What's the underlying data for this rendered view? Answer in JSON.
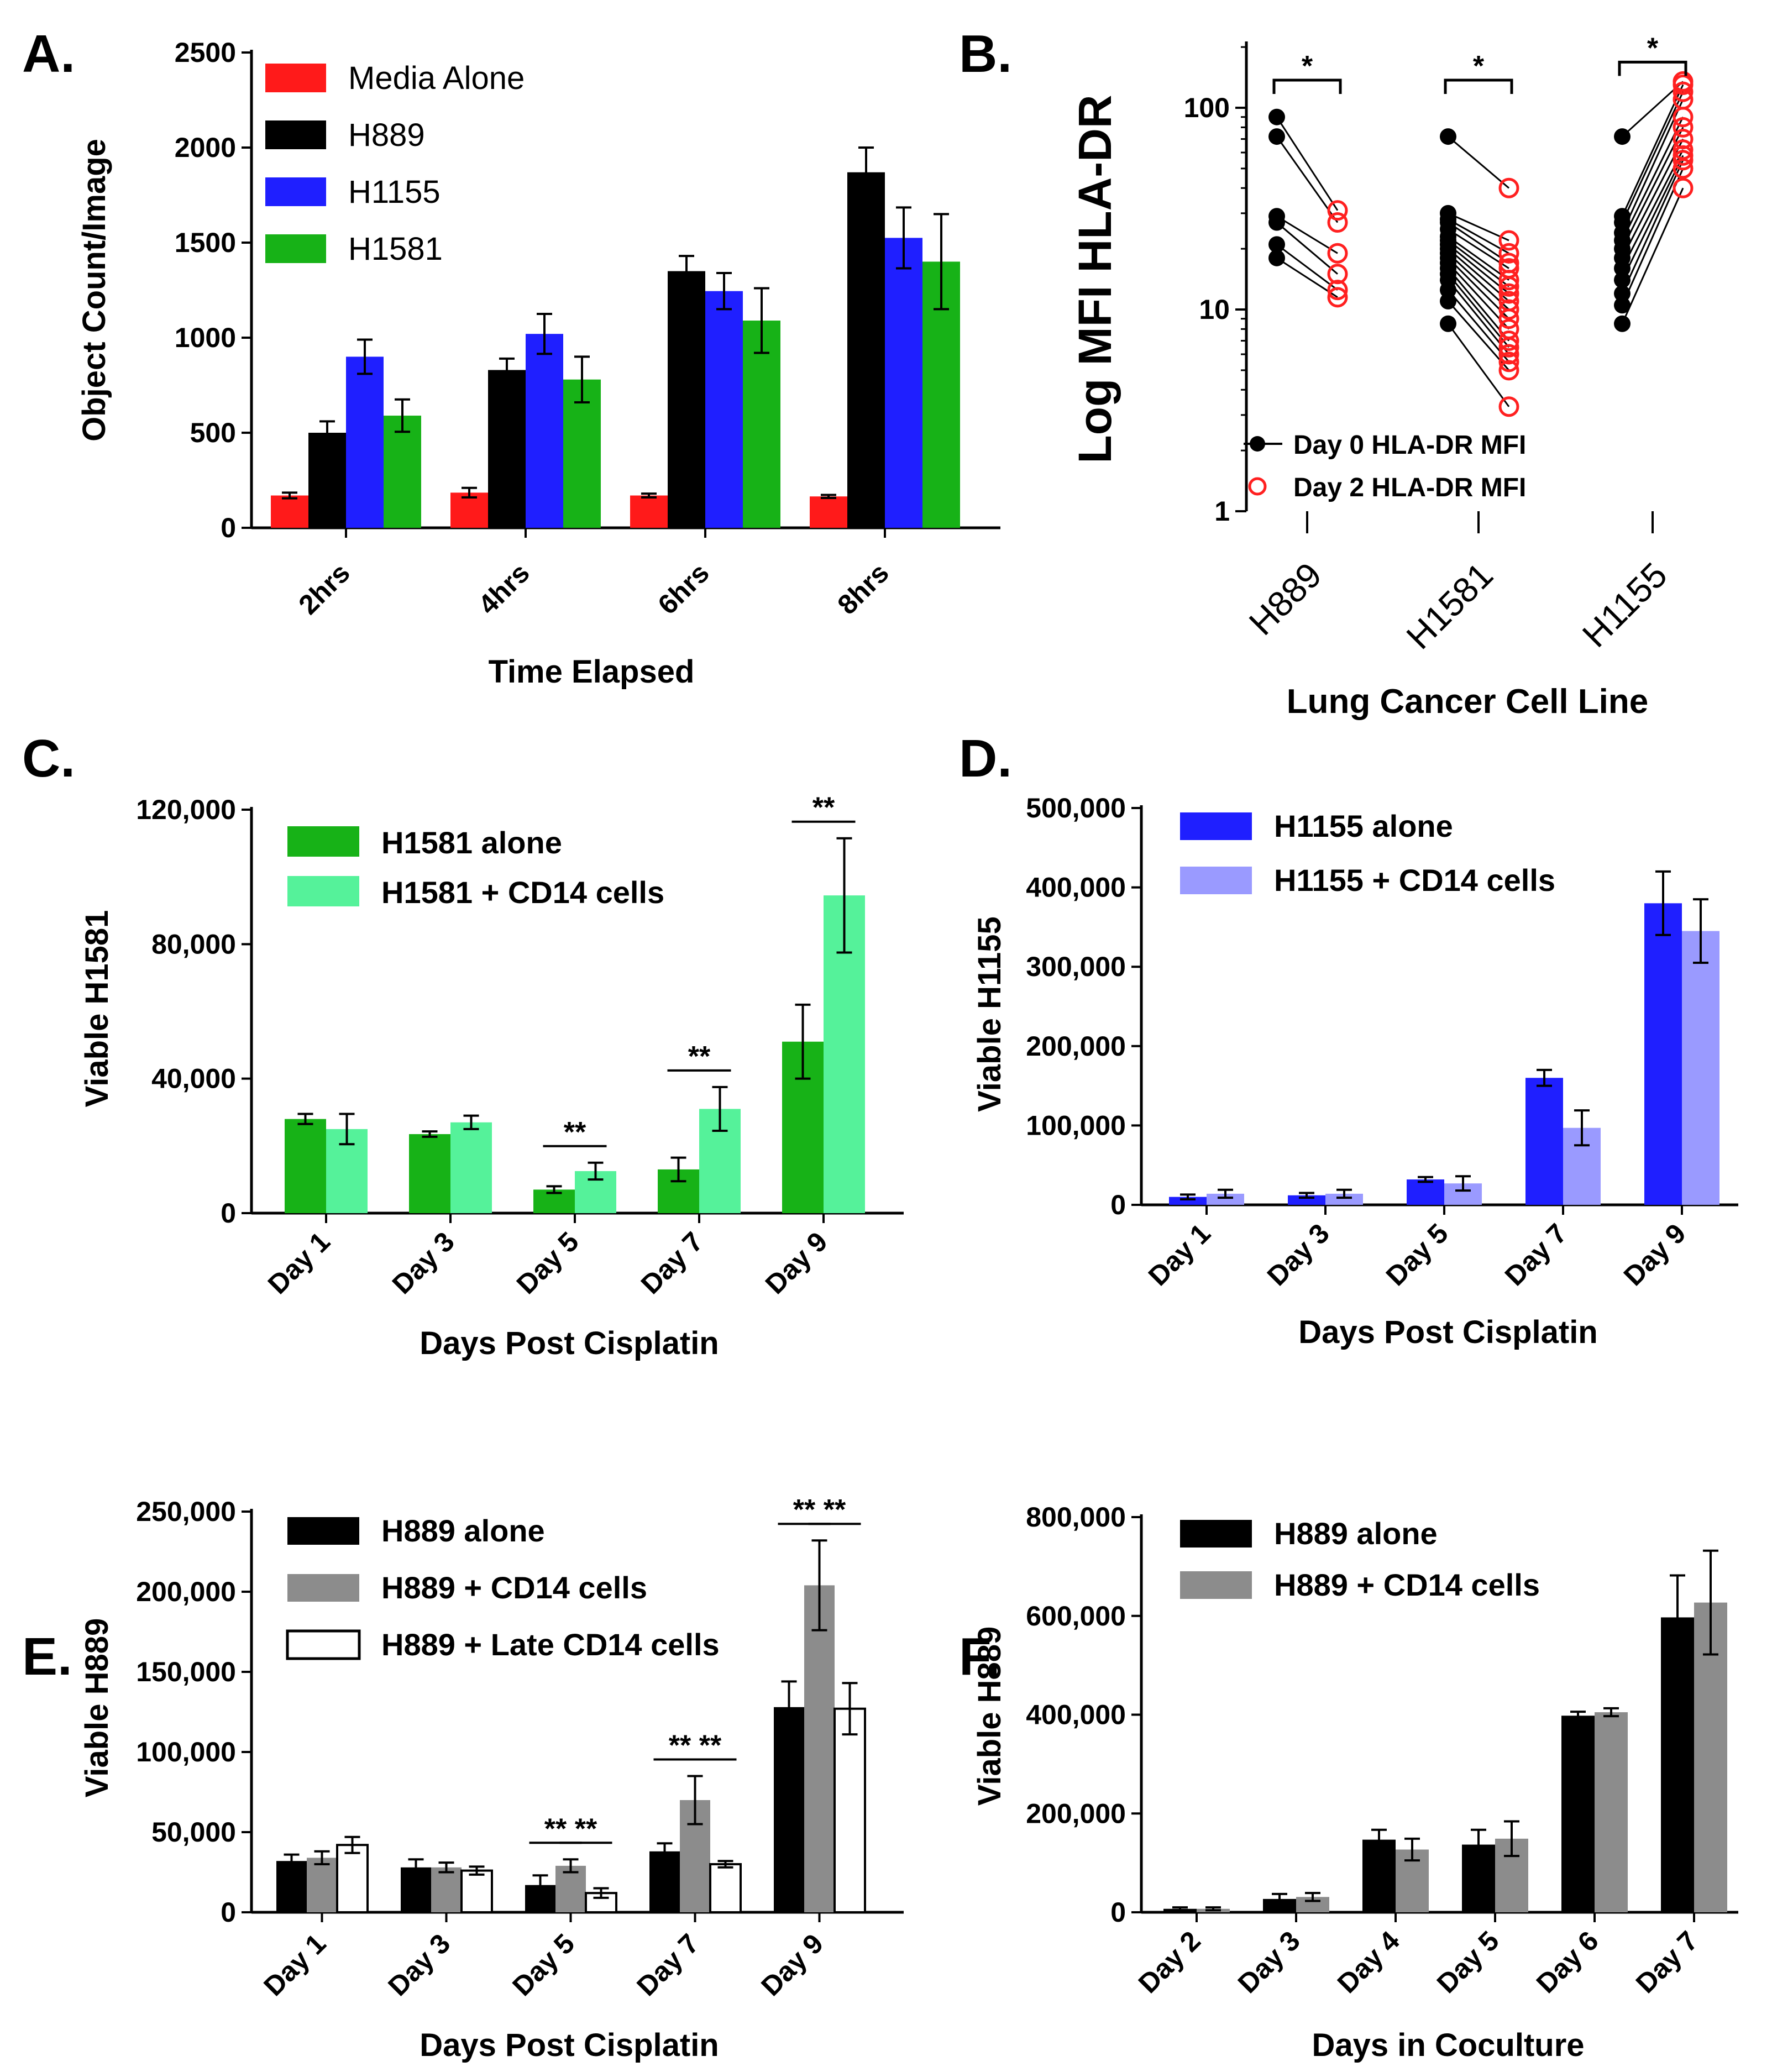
{
  "figure_title": "",
  "chart_data": [
    {
      "panel": "A.",
      "type": "bar",
      "title": "",
      "xlabel": "Time  Elapsed",
      "ylabel": "Object Count/Image",
      "ylim": [
        0,
        2500
      ],
      "yticks": [
        "0",
        "500",
        "1000",
        "1500",
        "2000",
        "2500"
      ],
      "categories": [
        "2hrs",
        "4hrs",
        "6hrs",
        "8hrs"
      ],
      "series": [
        {
          "name": "Media Alone",
          "color": "#ff1a1a",
          "values": [
            170,
            185,
            170,
            165
          ],
          "errors": [
            15,
            25,
            10,
            8
          ]
        },
        {
          "name": "H889",
          "color": "#000000",
          "values": [
            500,
            830,
            1350,
            1870
          ],
          "errors": [
            60,
            60,
            80,
            130
          ]
        },
        {
          "name": "H1155",
          "color": "#1f1fff",
          "values": [
            900,
            1020,
            1245,
            1525
          ],
          "errors": [
            90,
            105,
            95,
            160
          ]
        },
        {
          "name": "H1581",
          "color": "#17b217",
          "values": [
            590,
            780,
            1090,
            1400
          ],
          "errors": [
            85,
            120,
            170,
            250
          ]
        }
      ],
      "legend": "top-left"
    },
    {
      "panel": "B.",
      "type": "scatter",
      "title": "",
      "xlabel": "Lung Cancer Cell Line",
      "ylabel": "Log MFI HLA-DR",
      "yscale": "log",
      "ylim": [
        1,
        200
      ],
      "yticks": [
        "1",
        "10",
        "100"
      ],
      "categories": [
        "H889",
        "H1581",
        "H1155"
      ],
      "significance": [
        "*",
        "*",
        "*"
      ],
      "series": [
        {
          "name": "Day 0 HLA-DR MFI",
          "color": "#000000",
          "marker": "filled-circle"
        },
        {
          "name": "Day 2 HLA-DR MFI",
          "color": "#ff2020",
          "marker": "open-circle"
        }
      ],
      "pairs": [
        {
          "group": "H889",
          "day0": [
            90,
            72,
            29,
            27,
            21,
            18
          ],
          "day2": [
            31,
            27,
            19,
            15,
            12.5,
            11.5
          ]
        },
        {
          "group": "H1581",
          "day0": [
            72,
            30,
            28,
            27,
            25,
            23,
            22,
            21,
            20,
            19,
            18,
            17,
            16,
            15,
            14,
            12.5,
            11,
            8.5
          ],
          "day2": [
            40,
            22,
            19,
            17,
            16,
            14,
            13,
            12,
            11,
            10,
            9,
            8,
            7,
            6.5,
            6,
            5.5,
            5,
            3.3
          ]
        },
        {
          "group": "H1155",
          "day0": [
            72,
            29,
            27,
            24,
            22,
            20,
            18,
            16,
            14,
            12,
            10.5,
            8.5
          ],
          "day2": [
            135,
            130,
            120,
            110,
            90,
            80,
            70,
            62,
            58,
            55,
            50,
            40
          ]
        }
      ],
      "legend": "bottom-left"
    },
    {
      "panel": "C.",
      "type": "bar",
      "title": "",
      "xlabel": "Days Post Cisplatin",
      "ylabel": "Viable H1581",
      "ylim": [
        0,
        120000
      ],
      "yticks": [
        "0",
        "40,000",
        "80,000",
        "120,000"
      ],
      "categories": [
        "Day 1",
        "Day 3",
        "Day 5",
        "Day 7",
        "Day 9"
      ],
      "series": [
        {
          "name": "H1581 alone",
          "color": "#17b217",
          "values": [
            28000,
            23500,
            7000,
            13000,
            51000
          ],
          "errors": [
            1500,
            800,
            1000,
            3500,
            11000
          ]
        },
        {
          "name": "H1581 + CD14 cells",
          "color": "#55f29a",
          "values": [
            25000,
            27000,
            12500,
            31000,
            94500
          ],
          "errors": [
            4500,
            2000,
            2500,
            6500,
            17000
          ]
        }
      ],
      "significance": [
        {
          "category": "Day 5",
          "label": "**"
        },
        {
          "category": "Day 7",
          "label": "**"
        },
        {
          "category": "Day 9",
          "label": "**"
        }
      ],
      "legend": "top-left"
    },
    {
      "panel": "D.",
      "type": "bar",
      "title": "",
      "xlabel": "Days Post Cisplatin",
      "ylabel": "Viable H1155",
      "ylim": [
        0,
        500000
      ],
      "yticks": [
        "0",
        "100,000",
        "200,000",
        "300,000",
        "400,000",
        "500,000"
      ],
      "categories": [
        "Day 1",
        "Day 3",
        "Day 5",
        "Day 7",
        "Day 9"
      ],
      "series": [
        {
          "name": "H1155 alone",
          "color": "#1f1fff",
          "values": [
            10000,
            12000,
            32000,
            160000,
            380000
          ],
          "errors": [
            3000,
            3000,
            3000,
            10000,
            40000
          ]
        },
        {
          "name": "H1155 + CD14 cells",
          "color": "#9a9aff",
          "values": [
            14000,
            14000,
            27000,
            97000,
            345000
          ],
          "errors": [
            5000,
            5000,
            9000,
            22000,
            40000
          ]
        }
      ],
      "legend": "top-left"
    },
    {
      "panel": "E.",
      "type": "bar",
      "title": "",
      "xlabel": "Days Post Cisplatin",
      "ylabel": "Viable H889",
      "ylim": [
        0,
        250000
      ],
      "yticks": [
        "0",
        "50,000",
        "100,000",
        "150,000",
        "200,000",
        "250,000"
      ],
      "categories": [
        "Day 1",
        "Day 3",
        "Day 5",
        "Day 7",
        "Day 9"
      ],
      "series": [
        {
          "name": "H889 alone",
          "color": "#000000",
          "values": [
            32000,
            28000,
            17000,
            38000,
            128000
          ],
          "errors": [
            4000,
            5000,
            6000,
            5000,
            16000
          ]
        },
        {
          "name": "H889 + CD14 cells",
          "color": "#8c8c8c",
          "values": [
            34000,
            28000,
            29000,
            70000,
            204000
          ],
          "errors": [
            4000,
            3000,
            4000,
            15000,
            28000
          ]
        },
        {
          "name": "H889 + Late CD14 cells",
          "color": "#ffffff",
          "values": [
            42000,
            26000,
            12000,
            30000,
            127000
          ],
          "errors": [
            5000,
            2500,
            3000,
            2000,
            16000
          ]
        }
      ],
      "significance": [
        {
          "category": "Day 5",
          "label": "**",
          "between": "alone vs +CD14"
        },
        {
          "category": "Day 5",
          "label": "**",
          "between": "+CD14 vs Late"
        },
        {
          "category": "Day 7",
          "label": "**",
          "between": "alone vs +CD14"
        },
        {
          "category": "Day 7",
          "label": "**",
          "between": "+CD14 vs Late"
        },
        {
          "category": "Day 9",
          "label": "**",
          "between": "alone vs +CD14"
        },
        {
          "category": "Day 9",
          "label": "**",
          "between": "+CD14 vs Late"
        }
      ],
      "legend": "top-left"
    },
    {
      "panel": "F.",
      "type": "bar",
      "title": "",
      "xlabel": "Days in  Coculture",
      "ylabel": "Viable H889",
      "ylim": [
        0,
        800000
      ],
      "yticks": [
        "0",
        "200,000",
        "400,000",
        "600,000",
        "800,000"
      ],
      "categories": [
        "Day 2",
        "Day 3",
        "Day 4",
        "Day 5",
        "Day 6",
        "Day 7"
      ],
      "series": [
        {
          "name": "H889 alone",
          "color": "#000000",
          "values": [
            7000,
            27000,
            147000,
            137000,
            398000,
            597000
          ],
          "errors": [
            3000,
            10000,
            20000,
            30000,
            8000,
            85000
          ]
        },
        {
          "name": "H889 + CD14 cells",
          "color": "#8c8c8c",
          "values": [
            7000,
            31000,
            127000,
            149000,
            405000,
            627000
          ],
          "errors": [
            3000,
            8000,
            22000,
            35000,
            8000,
            105000
          ]
        }
      ],
      "legend": "top-left"
    }
  ]
}
